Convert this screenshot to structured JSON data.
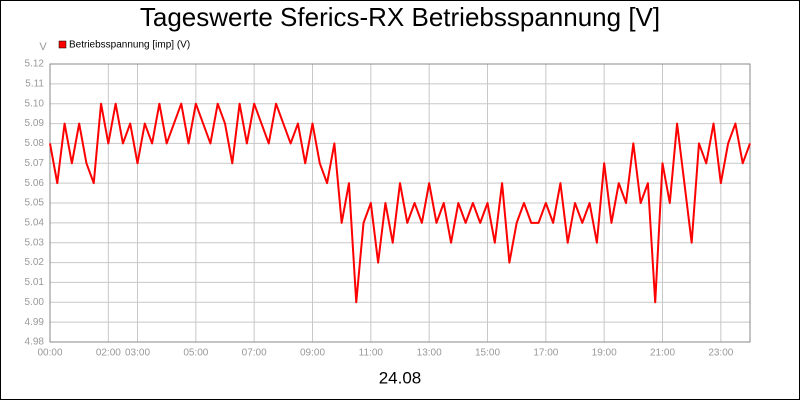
{
  "chart_data": {
    "type": "line",
    "title": "Tageswerte Sferics-RX Betriebsspannung [V]",
    "ylabel": "V",
    "xlabel": "24.08",
    "x": [
      0,
      0.25,
      0.5,
      0.75,
      1,
      1.25,
      1.5,
      1.75,
      2,
      2.25,
      2.5,
      2.75,
      3,
      3.25,
      3.5,
      3.75,
      4,
      4.25,
      4.5,
      4.75,
      5,
      5.25,
      5.5,
      5.75,
      6,
      6.25,
      6.5,
      6.75,
      7,
      7.25,
      7.5,
      7.75,
      8,
      8.25,
      8.5,
      8.75,
      9,
      9.25,
      9.5,
      9.75,
      10,
      10.25,
      10.5,
      10.75,
      11,
      11.25,
      11.5,
      11.75,
      12,
      12.25,
      12.5,
      12.75,
      13,
      13.25,
      13.5,
      13.75,
      14,
      14.25,
      14.5,
      14.75,
      15,
      15.25,
      15.5,
      15.75,
      16,
      16.25,
      16.5,
      16.75,
      17,
      17.25,
      17.5,
      17.75,
      18,
      18.25,
      18.5,
      18.75,
      19,
      19.25,
      19.5,
      19.75,
      20,
      20.25,
      20.5,
      20.75,
      21,
      21.25,
      21.5,
      21.75,
      22,
      22.25,
      22.5,
      22.75,
      23,
      23.25,
      23.5,
      23.75,
      24
    ],
    "series": [
      {
        "name": "Betriebsspannung [imp] (V)",
        "color": "#ff0000",
        "values": [
          5.08,
          5.06,
          5.09,
          5.07,
          5.09,
          5.07,
          5.06,
          5.1,
          5.08,
          5.1,
          5.08,
          5.09,
          5.07,
          5.09,
          5.08,
          5.1,
          5.08,
          5.09,
          5.1,
          5.08,
          5.1,
          5.09,
          5.08,
          5.1,
          5.09,
          5.07,
          5.1,
          5.08,
          5.1,
          5.09,
          5.08,
          5.1,
          5.09,
          5.08,
          5.09,
          5.07,
          5.09,
          5.07,
          5.06,
          5.08,
          5.04,
          5.06,
          5,
          5.04,
          5.05,
          5.02,
          5.05,
          5.03,
          5.06,
          5.04,
          5.05,
          5.04,
          5.06,
          5.04,
          5.05,
          5.03,
          5.05,
          5.04,
          5.05,
          5.04,
          5.05,
          5.03,
          5.06,
          5.02,
          5.04,
          5.05,
          5.04,
          5.04,
          5.05,
          5.04,
          5.06,
          5.03,
          5.05,
          5.04,
          5.05,
          5.03,
          5.07,
          5.04,
          5.06,
          5.05,
          5.08,
          5.05,
          5.06,
          5,
          5.07,
          5.05,
          5.09,
          5.06,
          5.03,
          5.08,
          5.07,
          5.09,
          5.06,
          5.08,
          5.09,
          5.07,
          5.08
        ]
      }
    ],
    "xlim": [
      0,
      24
    ],
    "xticks": [
      {
        "value": 0,
        "label": "00:00"
      },
      {
        "value": 2,
        "label": "02:00"
      },
      {
        "value": 3,
        "label": "03:00"
      },
      {
        "value": 5,
        "label": "05:00"
      },
      {
        "value": 7,
        "label": "07:00"
      },
      {
        "value": 9,
        "label": "09:00"
      },
      {
        "value": 11,
        "label": "11:00"
      },
      {
        "value": 13,
        "label": "13:00"
      },
      {
        "value": 15,
        "label": "15:00"
      },
      {
        "value": 17,
        "label": "17:00"
      },
      {
        "value": 19,
        "label": "19:00"
      },
      {
        "value": 21,
        "label": "21:00"
      },
      {
        "value": 23,
        "label": "23:00"
      }
    ],
    "ylim": [
      4.98,
      5.12
    ],
    "yticks": [
      4.98,
      4.99,
      {
        "value": 5,
        "label": "5.00"
      },
      5.01,
      5.02,
      5.03,
      5.04,
      5.05,
      5.06,
      5.07,
      5.08,
      5.09,
      {
        "value": 5.1,
        "label": "5.10"
      },
      5.11,
      5.12
    ],
    "grid": true
  }
}
